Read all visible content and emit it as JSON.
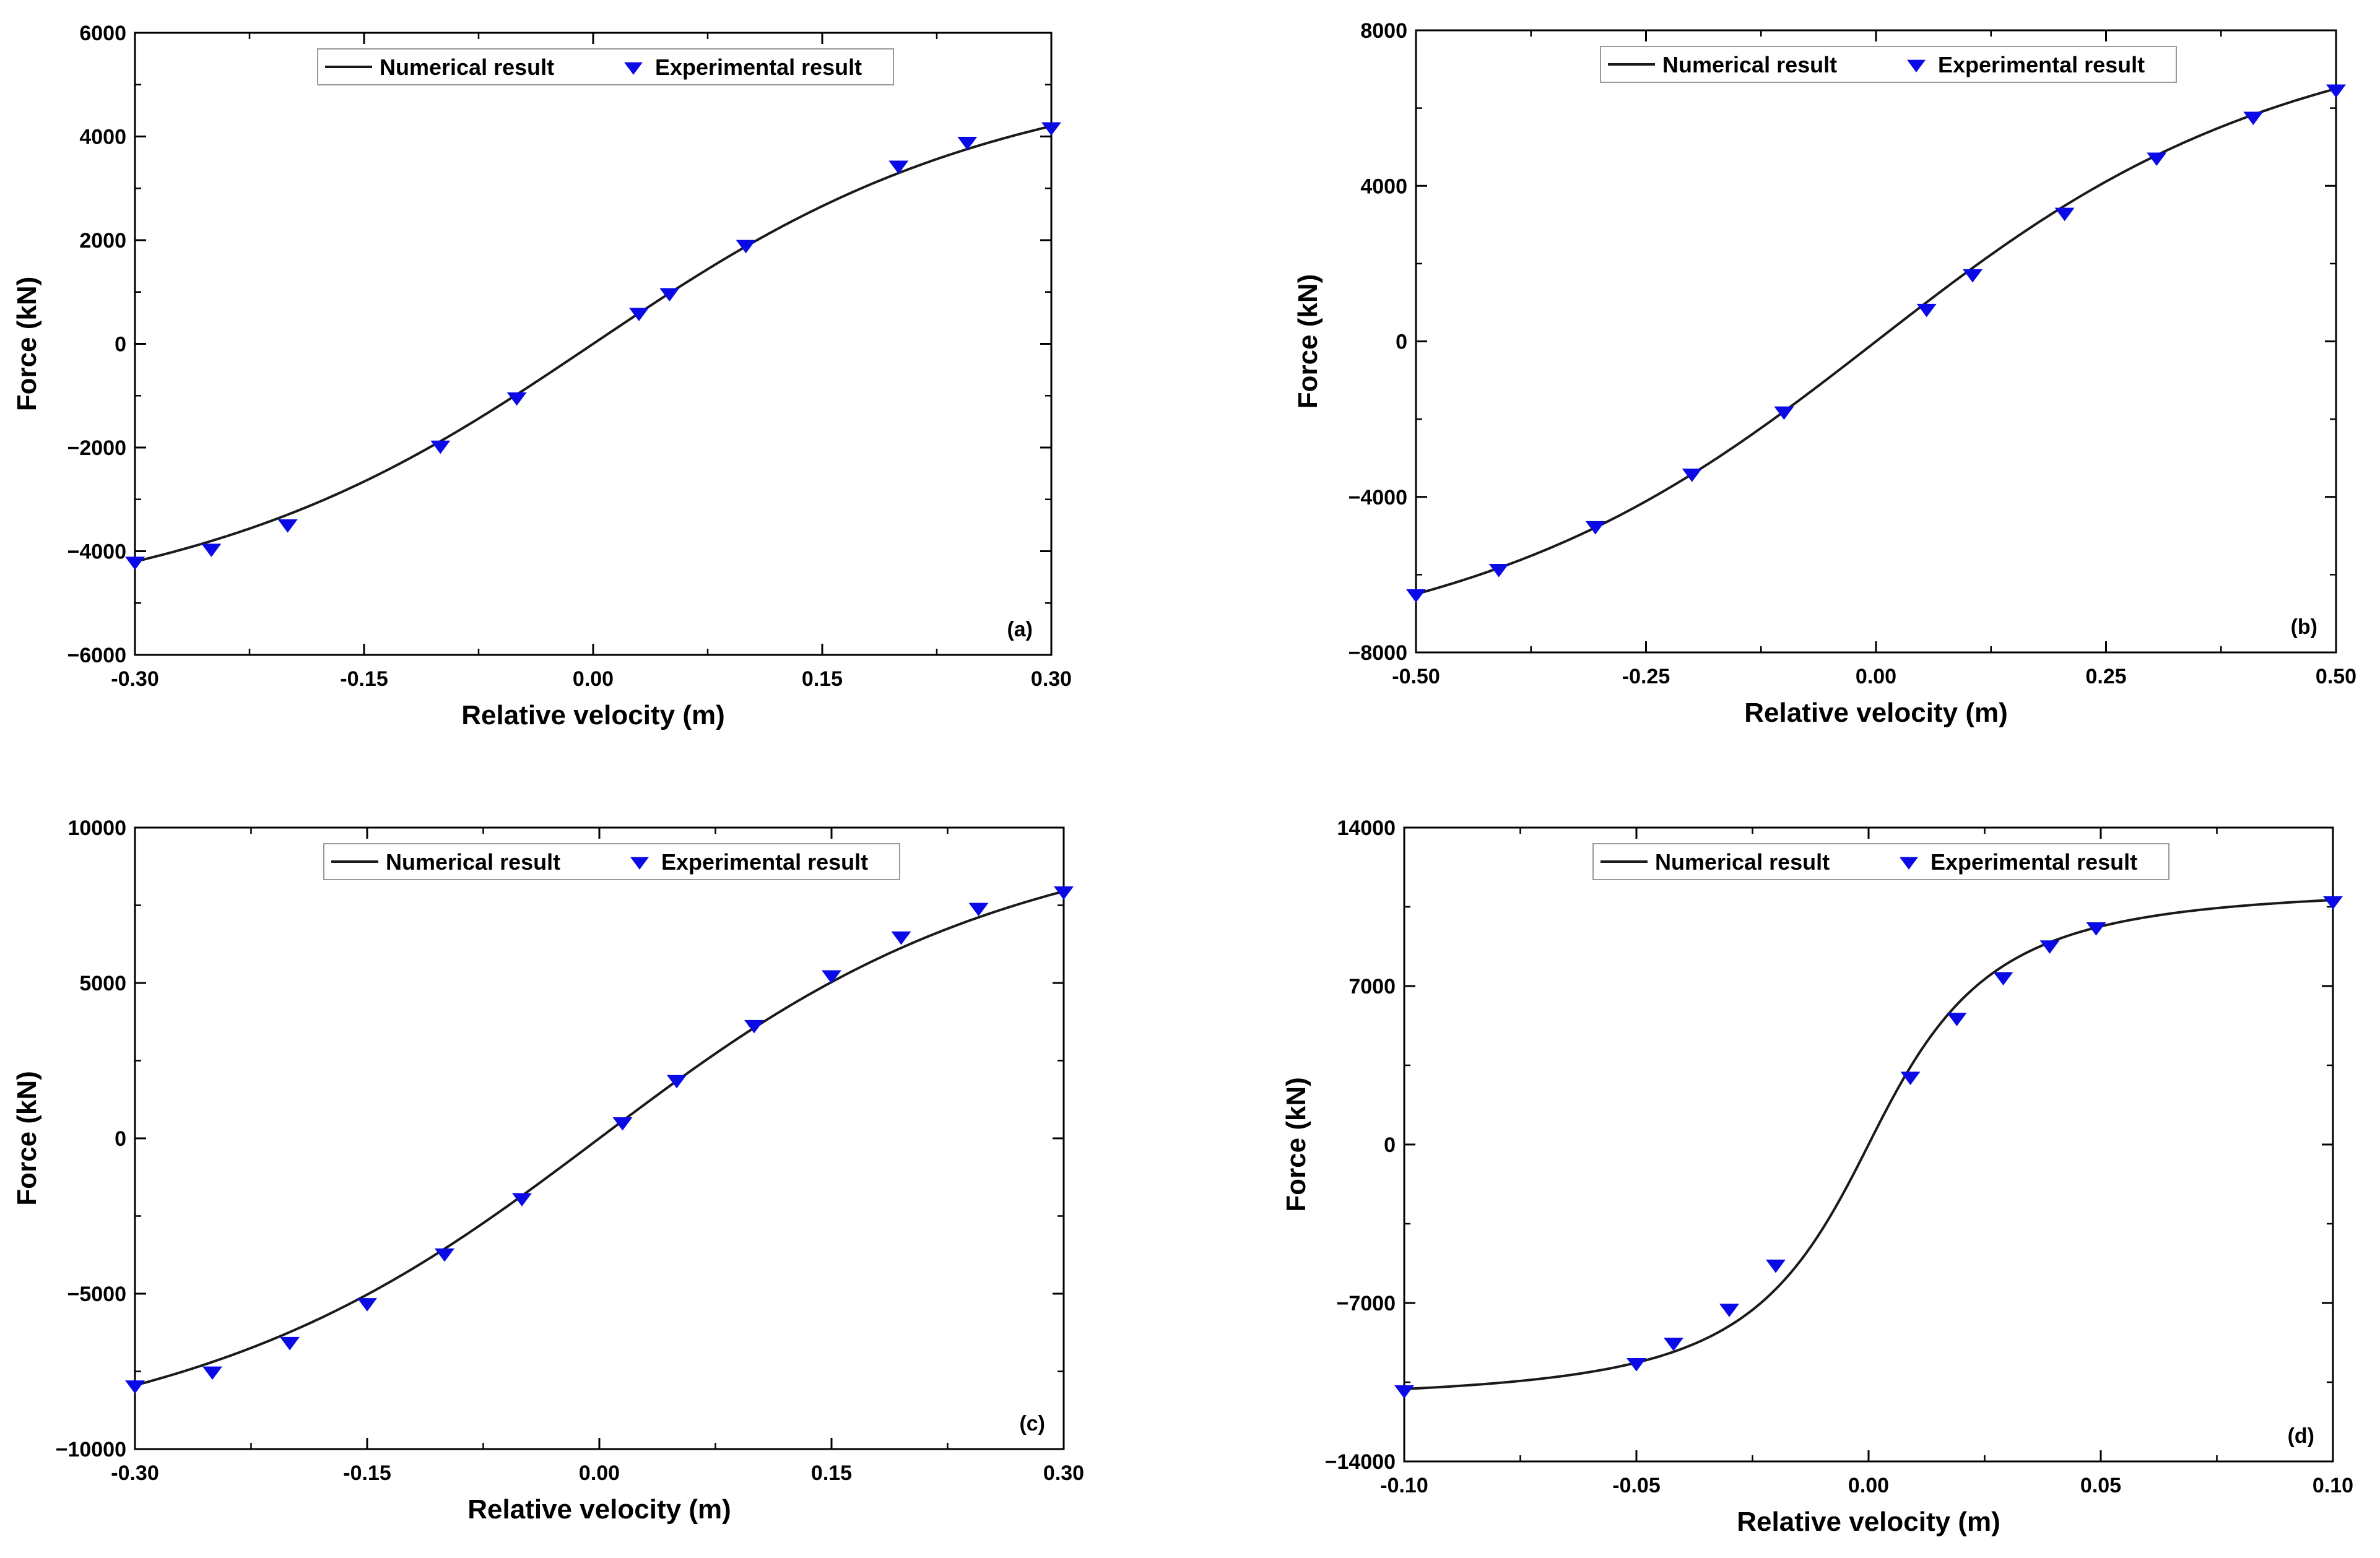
{
  "figure": {
    "colors": {
      "axis": "#000000",
      "curve": "#1a1a1a",
      "marker": "#0a0ae6",
      "legend_border": "#999999"
    },
    "marker_symbol": "down-triangle",
    "legend_placement": "top-center"
  },
  "chart_data": [
    {
      "type": "line",
      "panel_label": "(a)",
      "xlabel": "Relative velocity (m)",
      "ylabel": "Force (kN)",
      "xlim": [
        -0.3,
        0.3
      ],
      "ylim": [
        -6000,
        6000
      ],
      "xticks": [
        -0.3,
        -0.15,
        0.0,
        0.15,
        0.3
      ],
      "xtick_labels": [
        "-0.30",
        "-0.15",
        "0.00",
        "0.15",
        "0.30"
      ],
      "yticks": [
        -6000,
        -4000,
        -2000,
        0,
        2000,
        4000,
        6000
      ],
      "ytick_labels": [
        "−6000",
        "−4000",
        "−2000",
        "0",
        "2000",
        "4000",
        "6000"
      ],
      "grid": false,
      "series": [
        {
          "name": "Numerical result",
          "kind": "line",
          "x_range": [
            -0.3,
            0.3
          ],
          "curve": {
            "amp": 4200,
            "xs": 0.3,
            "p": 2,
            "t": 0.93
          }
        },
        {
          "name": "Experimental result",
          "kind": "scatter",
          "x": [
            -0.3,
            -0.25,
            -0.2,
            -0.1,
            -0.05,
            0.03,
            0.05,
            0.1,
            0.2,
            0.245,
            0.3
          ],
          "y": [
            -4200,
            -3950,
            -3480,
            -1960,
            -1030,
            600,
            980,
            1910,
            3440,
            3900,
            4180
          ]
        }
      ]
    },
    {
      "type": "line",
      "panel_label": "(b)",
      "xlabel": "Relative velocity (m)",
      "ylabel": "Force (kN)",
      "xlim": [
        -0.5,
        0.5
      ],
      "ylim": [
        -8000,
        8000
      ],
      "xticks": [
        -0.5,
        -0.25,
        0.0,
        0.25,
        0.5
      ],
      "xtick_labels": [
        "-0.50",
        "-0.25",
        "0.00",
        "0.25",
        "0.50"
      ],
      "yticks": [
        -8000,
        -4000,
        0,
        4000,
        8000
      ],
      "ytick_labels": [
        "−8000",
        "−4000",
        "0",
        "4000",
        "8000"
      ],
      "grid": false,
      "series": [
        {
          "name": "Numerical result",
          "kind": "line",
          "x_range": [
            -0.5,
            0.5
          ],
          "curve": {
            "amp": 6500,
            "xs": 0.5,
            "p": 2,
            "t": 0.9
          }
        },
        {
          "name": "Experimental result",
          "kind": "scatter",
          "x": [
            -0.5,
            -0.41,
            -0.305,
            -0.2,
            -0.1,
            0.055,
            0.105,
            0.205,
            0.305,
            0.41,
            0.5
          ],
          "y": [
            -6500,
            -5850,
            -4750,
            -3400,
            -1800,
            840,
            1730,
            3310,
            4730,
            5780,
            6480
          ]
        }
      ]
    },
    {
      "type": "line",
      "panel_label": "(c)",
      "xlabel": "Relative velocity (m)",
      "ylabel": "Force (kN)",
      "xlim": [
        -0.3,
        0.3
      ],
      "ylim": [
        -10000,
        10000
      ],
      "xticks": [
        -0.3,
        -0.15,
        0.0,
        0.15,
        0.3
      ],
      "xtick_labels": [
        "-0.30",
        "-0.15",
        "0.00",
        "0.15",
        "0.30"
      ],
      "yticks": [
        -10000,
        -5000,
        0,
        5000,
        10000
      ],
      "ytick_labels": [
        "−10000",
        "−5000",
        "0",
        "5000",
        "10000"
      ],
      "grid": false,
      "series": [
        {
          "name": "Numerical result",
          "kind": "line",
          "x_range": [
            -0.3,
            0.3
          ],
          "curve": {
            "amp": 7950,
            "xs": 0.3,
            "p": 2,
            "t": 0.9
          }
        },
        {
          "name": "Experimental result",
          "kind": "scatter",
          "x": [
            -0.3,
            -0.25,
            -0.2,
            -0.15,
            -0.1,
            -0.05,
            0.015,
            0.05,
            0.1,
            0.15,
            0.195,
            0.245,
            0.3
          ],
          "y": [
            -7950,
            -7500,
            -6550,
            -5300,
            -3700,
            -1920,
            520,
            1880,
            3650,
            5250,
            6500,
            7420,
            7950
          ]
        }
      ]
    },
    {
      "type": "line",
      "panel_label": "(d)",
      "xlabel": "Relative velocity (m)",
      "ylabel": "Force (kN)",
      "xlim": [
        -0.1,
        0.1
      ],
      "ylim": [
        -14000,
        14000
      ],
      "xticks": [
        -0.1,
        -0.05,
        0.0,
        0.05,
        0.1
      ],
      "xtick_labels": [
        "-0.10",
        "-0.05",
        "0.00",
        "0.05",
        "0.10"
      ],
      "yticks": [
        -14000,
        -7000,
        0,
        7000,
        14000
      ],
      "ytick_labels": [
        "−14000",
        "−7000",
        "0",
        "7000",
        "14000"
      ],
      "grid": false,
      "series": [
        {
          "name": "Numerical result",
          "kind": "line",
          "x_range": [
            -0.1,
            0.1
          ],
          "curve": {
            "amp": 10800,
            "xs": 0.028,
            "p": 1.8,
            "t": 1.0
          }
        },
        {
          "name": "Experimental result",
          "kind": "scatter",
          "x": [
            -0.1,
            -0.05,
            -0.042,
            -0.03,
            -0.02,
            0.009,
            0.019,
            0.029,
            0.039,
            0.049,
            0.1
          ],
          "y": [
            -10850,
            -9650,
            -8750,
            -7250,
            -5300,
            3000,
            5600,
            7400,
            8800,
            9600,
            10750
          ]
        }
      ]
    }
  ]
}
